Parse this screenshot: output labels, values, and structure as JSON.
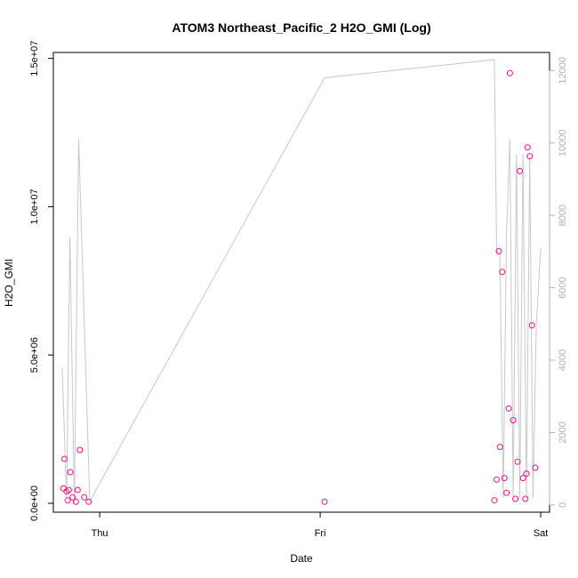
{
  "chart_data": {
    "type": "scatter",
    "title": "ATOM3 Northeast_Pacific_2 H2O_GMI (Log)",
    "xlabel": "Date",
    "ylabel": "H2O_GMI",
    "xlim": [
      -0.21,
      2.04
    ],
    "ylim": [
      -300000.0,
      15200000.0
    ],
    "x_ticks": [
      {
        "value": 0,
        "label": "Thu"
      },
      {
        "value": 1,
        "label": "Fri"
      },
      {
        "value": 2,
        "label": "Sat"
      }
    ],
    "y_ticks": [
      {
        "value": 0,
        "label": "0.0e+00"
      },
      {
        "value": 5000000,
        "label": "5.0e+06"
      },
      {
        "value": 10000000,
        "label": "1.0e+07"
      },
      {
        "value": 15000000,
        "label": "1.5e+07"
      }
    ],
    "y2lim": [
      -200,
      12500
    ],
    "y2_ticks": [
      {
        "value": 0,
        "label": "0"
      },
      {
        "value": 2000,
        "label": "2000"
      },
      {
        "value": 4000,
        "label": "4000"
      },
      {
        "value": 6000,
        "label": "6000"
      },
      {
        "value": 8000,
        "label": "8000"
      },
      {
        "value": 10000,
        "label": "10000"
      },
      {
        "value": 12000,
        "label": "12000"
      }
    ],
    "grid": false,
    "colors": {
      "points": "#ee1188",
      "line": "#c8c8c8",
      "axis": "#000000",
      "right_axis": "#b0b0b0"
    },
    "series": [
      {
        "kind": "points",
        "axis": "left",
        "x": [
          -0.165,
          -0.16,
          -0.15,
          -0.145,
          -0.14,
          -0.133,
          -0.123,
          -0.108,
          -0.1,
          -0.09,
          -0.07,
          -0.05,
          1.02,
          1.79,
          1.8,
          1.81,
          1.815,
          1.825,
          1.835,
          1.845,
          1.855,
          1.86,
          1.875,
          1.885,
          1.895,
          1.905,
          1.92,
          1.93,
          1.935,
          1.94,
          1.95,
          1.96,
          1.975
        ],
        "y": [
          500000,
          1500000,
          400000,
          100000,
          450000,
          1050000,
          200000,
          50000,
          450000,
          1800000,
          200000,
          50000,
          50000,
          100000,
          800000,
          8500000,
          1900000,
          7800000,
          850000,
          350000,
          3200000,
          14500000,
          2800000,
          150000,
          1400000,
          11200000,
          850000,
          150000,
          1000000,
          12000000,
          11700000,
          6000000,
          1200000
        ]
      },
      {
        "kind": "line",
        "axis": "right",
        "x": [
          -0.17,
          -0.15,
          -0.135,
          -0.115,
          -0.095,
          -0.045,
          1.02,
          1.79,
          1.8,
          1.815,
          1.83,
          1.845,
          1.86,
          1.875,
          1.89,
          1.905,
          1.92,
          1.935,
          1.95,
          1.965,
          1.98,
          2.0
        ],
        "y": [
          3800,
          200,
          7400,
          50,
          10100,
          100,
          11800,
          12300,
          7000,
          6900,
          200,
          7500,
          10100,
          200,
          9700,
          200,
          9700,
          200,
          9600,
          200,
          5000,
          7100
        ]
      }
    ]
  }
}
